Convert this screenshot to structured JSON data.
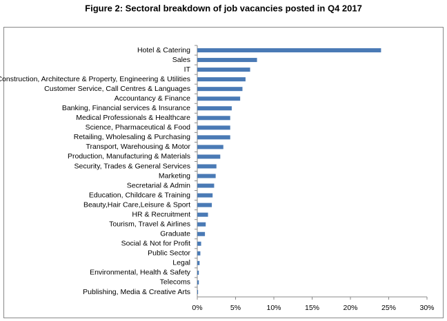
{
  "chart_data": {
    "type": "hbar",
    "title": "Figure 2: Sectoral breakdown of job vacancies posted in Q4 2017",
    "categories": [
      "Hotel & Catering",
      "Sales",
      "IT",
      "Construction, Architecture & Property, Engineering & Utilities",
      "Customer Service, Call Centres & Languages",
      "Accountancy & Finance",
      "Banking, Financial services & Insurance",
      "Medical Professionals & Healthcare",
      "Science, Pharmaceutical & Food",
      "Retailing, Wholesaling & Purchasing",
      "Transport, Warehousing & Motor",
      "Production, Manufacturing & Materials",
      "Security, Trades & General Services",
      "Marketing",
      "Secretarial & Admin",
      "Education, Childcare & Training",
      "Beauty,Hair Care,Leisure & Sport",
      "HR & Recruitment",
      "Tourism, Travel & Airlines",
      "Graduate",
      "Social & Not for Profit",
      "Public Sector",
      "Legal",
      "Environmental, Health & Safety",
      "Telecoms",
      "Publishing, Media & Creative Arts"
    ],
    "values": [
      24,
      7.8,
      6.9,
      6.3,
      5.9,
      5.6,
      4.5,
      4.3,
      4.3,
      4.3,
      3.4,
      3.0,
      2.5,
      2.4,
      2.2,
      2.0,
      1.9,
      1.4,
      1.1,
      1.0,
      0.5,
      0.4,
      0.3,
      0.2,
      0.2,
      0.1
    ],
    "color": "#4a7ab5",
    "xlim": [
      0,
      30
    ],
    "xticks": [
      {
        "value": 0,
        "label": "0%"
      },
      {
        "value": 5,
        "label": "5%"
      },
      {
        "value": 10,
        "label": "10%"
      },
      {
        "value": 15,
        "label": "15%"
      },
      {
        "value": 20,
        "label": "20%"
      },
      {
        "value": 25,
        "label": "25%"
      },
      {
        "value": 30,
        "label": "30%"
      }
    ]
  }
}
